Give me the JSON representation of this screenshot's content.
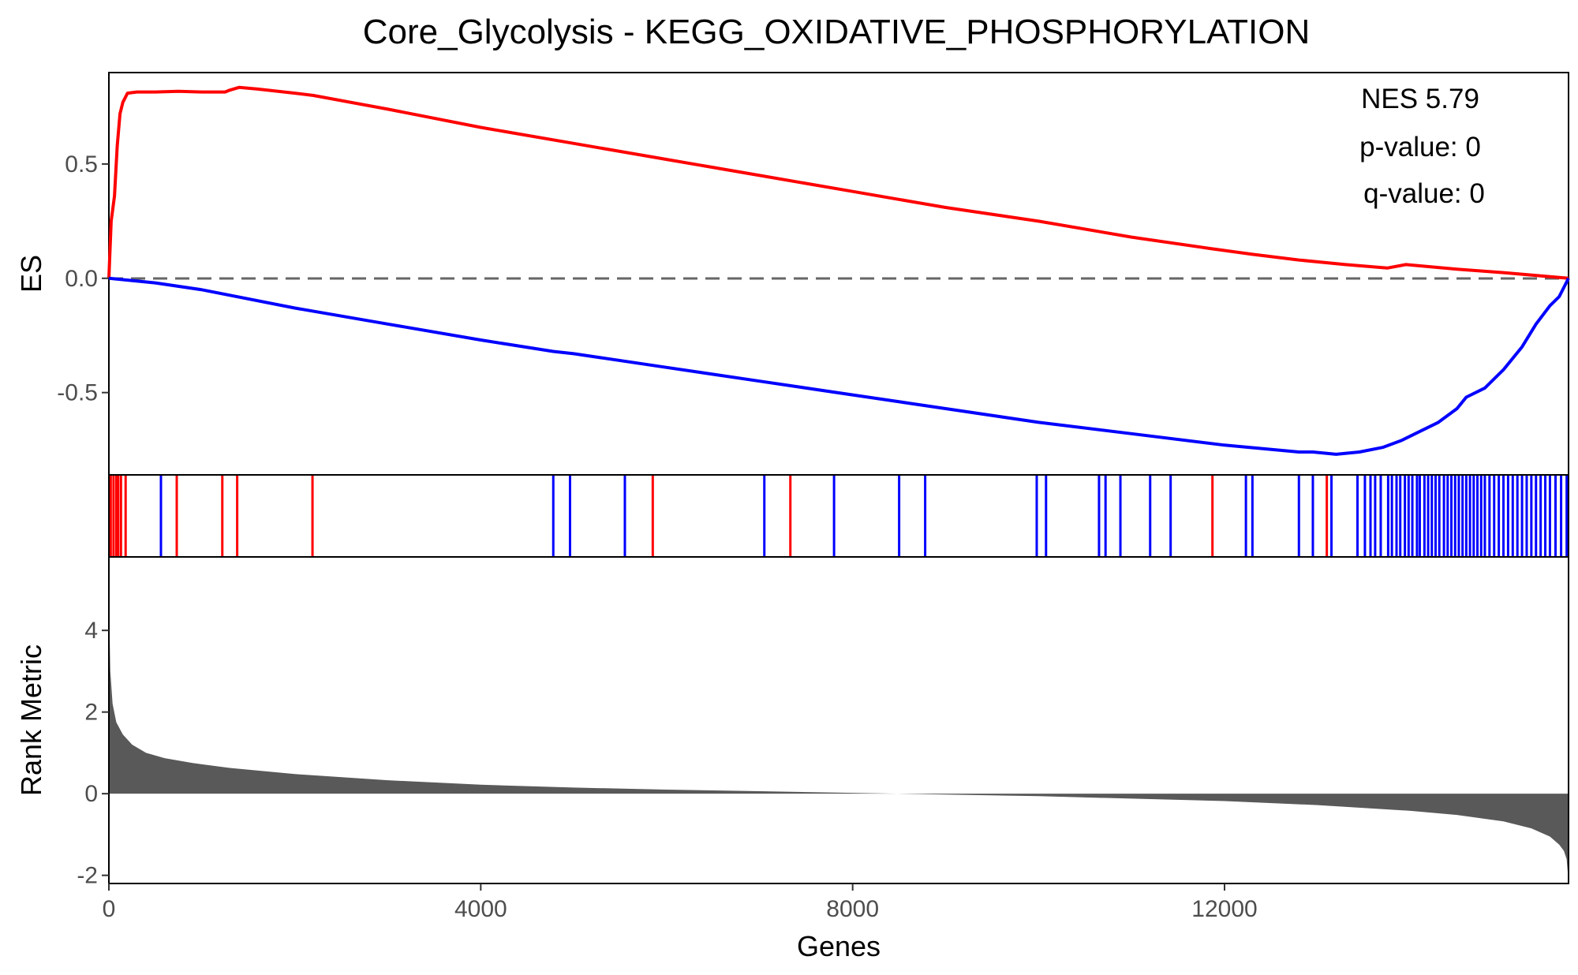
{
  "chart_data": {
    "type": "line",
    "title": "Core_Glycolysis - KEGG_OXIDATIVE_PHOSPHORYLATION",
    "xlabel": "Genes",
    "xlim": [
      0,
      15700
    ],
    "x_ticks": [
      0,
      4000,
      8000,
      12000
    ],
    "x_tick_labels": [
      "0",
      "4000",
      "8000",
      "12000"
    ],
    "es_panel": {
      "ylabel": "ES",
      "ylim": [
        -0.86,
        0.9
      ],
      "y_ticks": [
        0.5,
        0.0,
        -0.5
      ],
      "y_tick_labels": [
        "0.5",
        "0.0",
        "-0.5"
      ],
      "baseline": 0,
      "annotations": [
        "NES 5.79",
        "p-value: 0",
        "q-value: 0"
      ],
      "series": [
        {
          "color": "#ff0000",
          "x": [
            0,
            25,
            60,
            90,
            120,
            150,
            200,
            300,
            500,
            750,
            1000,
            1250,
            1300,
            1400,
            1600,
            2000,
            2200,
            3000,
            4000,
            5000,
            6000,
            7000,
            8000,
            9000,
            10000,
            11000,
            11850,
            12300,
            12800,
            13300,
            13750,
            13950,
            14500,
            15000,
            15700
          ],
          "y": [
            0.0,
            0.25,
            0.36,
            0.58,
            0.72,
            0.77,
            0.81,
            0.815,
            0.815,
            0.818,
            0.815,
            0.815,
            0.823,
            0.835,
            0.828,
            0.81,
            0.8,
            0.74,
            0.66,
            0.59,
            0.52,
            0.45,
            0.38,
            0.31,
            0.25,
            0.18,
            0.13,
            0.105,
            0.08,
            0.06,
            0.045,
            0.06,
            0.04,
            0.025,
            0.0
          ]
        },
        {
          "color": "#0000ff",
          "x": [
            0,
            500,
            1000,
            2000,
            3000,
            4000,
            4780,
            5000,
            6000,
            7000,
            8000,
            9000,
            10000,
            11000,
            12000,
            12800,
            12950,
            13200,
            13450,
            13700,
            13900,
            14100,
            14300,
            14500,
            14600,
            14800,
            15000,
            15200,
            15350,
            15500,
            15600,
            15650,
            15700
          ],
          "y": [
            0.0,
            -0.02,
            -0.05,
            -0.13,
            -0.2,
            -0.27,
            -0.32,
            -0.33,
            -0.39,
            -0.45,
            -0.51,
            -0.57,
            -0.63,
            -0.68,
            -0.73,
            -0.76,
            -0.76,
            -0.77,
            -0.76,
            -0.74,
            -0.71,
            -0.67,
            -0.63,
            -0.57,
            -0.52,
            -0.48,
            -0.4,
            -0.3,
            -0.2,
            -0.12,
            -0.08,
            -0.04,
            0.0
          ]
        }
      ]
    },
    "hits_panel": {
      "red": [
        20,
        50,
        80,
        100,
        130,
        180,
        560,
        730,
        1220,
        1380,
        2190,
        5850,
        7330,
        11870,
        13100
      ],
      "blue": [
        560,
        4780,
        4960,
        5550,
        7050,
        7800,
        8500,
        8780,
        9980,
        10080,
        10650,
        10720,
        10880,
        11200,
        11420,
        12230,
        12300,
        12800,
        12950,
        13150,
        13430,
        13510,
        13570,
        13620,
        13680,
        13760,
        13800,
        13850,
        13890,
        13940,
        13980,
        14020,
        14070,
        14100,
        14150,
        14190,
        14230,
        14270,
        14310,
        14360,
        14400,
        14440,
        14480,
        14520,
        14560,
        14600,
        14640,
        14680,
        14720,
        14760,
        14800,
        14850,
        14900,
        14950,
        15000,
        15050,
        15100,
        15150,
        15200,
        15250,
        15300,
        15350,
        15400,
        15450,
        15500,
        15560,
        15620,
        15680
      ]
    },
    "rank_panel": {
      "ylabel": "Rank Metric",
      "ylim": [
        -2.2,
        5.8
      ],
      "y_ticks": [
        4,
        2,
        0,
        -2
      ],
      "y_tick_labels": [
        "4",
        "2",
        "0",
        "-2"
      ],
      "fill_color": "#595959",
      "x": [
        0,
        5,
        15,
        40,
        80,
        150,
        250,
        400,
        600,
        900,
        1300,
        2000,
        3000,
        4000,
        5000,
        6000,
        7000,
        8000,
        9000,
        10000,
        11000,
        12000,
        13000,
        14000,
        14500,
        15000,
        15300,
        15500,
        15600,
        15650,
        15680,
        15700
      ],
      "y": [
        5.5,
        4.2,
        3.0,
        2.2,
        1.75,
        1.45,
        1.2,
        1.0,
        0.87,
        0.75,
        0.63,
        0.48,
        0.33,
        0.22,
        0.15,
        0.1,
        0.06,
        0.02,
        -0.02,
        -0.06,
        -0.12,
        -0.18,
        -0.28,
        -0.42,
        -0.52,
        -0.68,
        -0.85,
        -1.05,
        -1.25,
        -1.4,
        -1.6,
        -2.15
      ]
    }
  }
}
